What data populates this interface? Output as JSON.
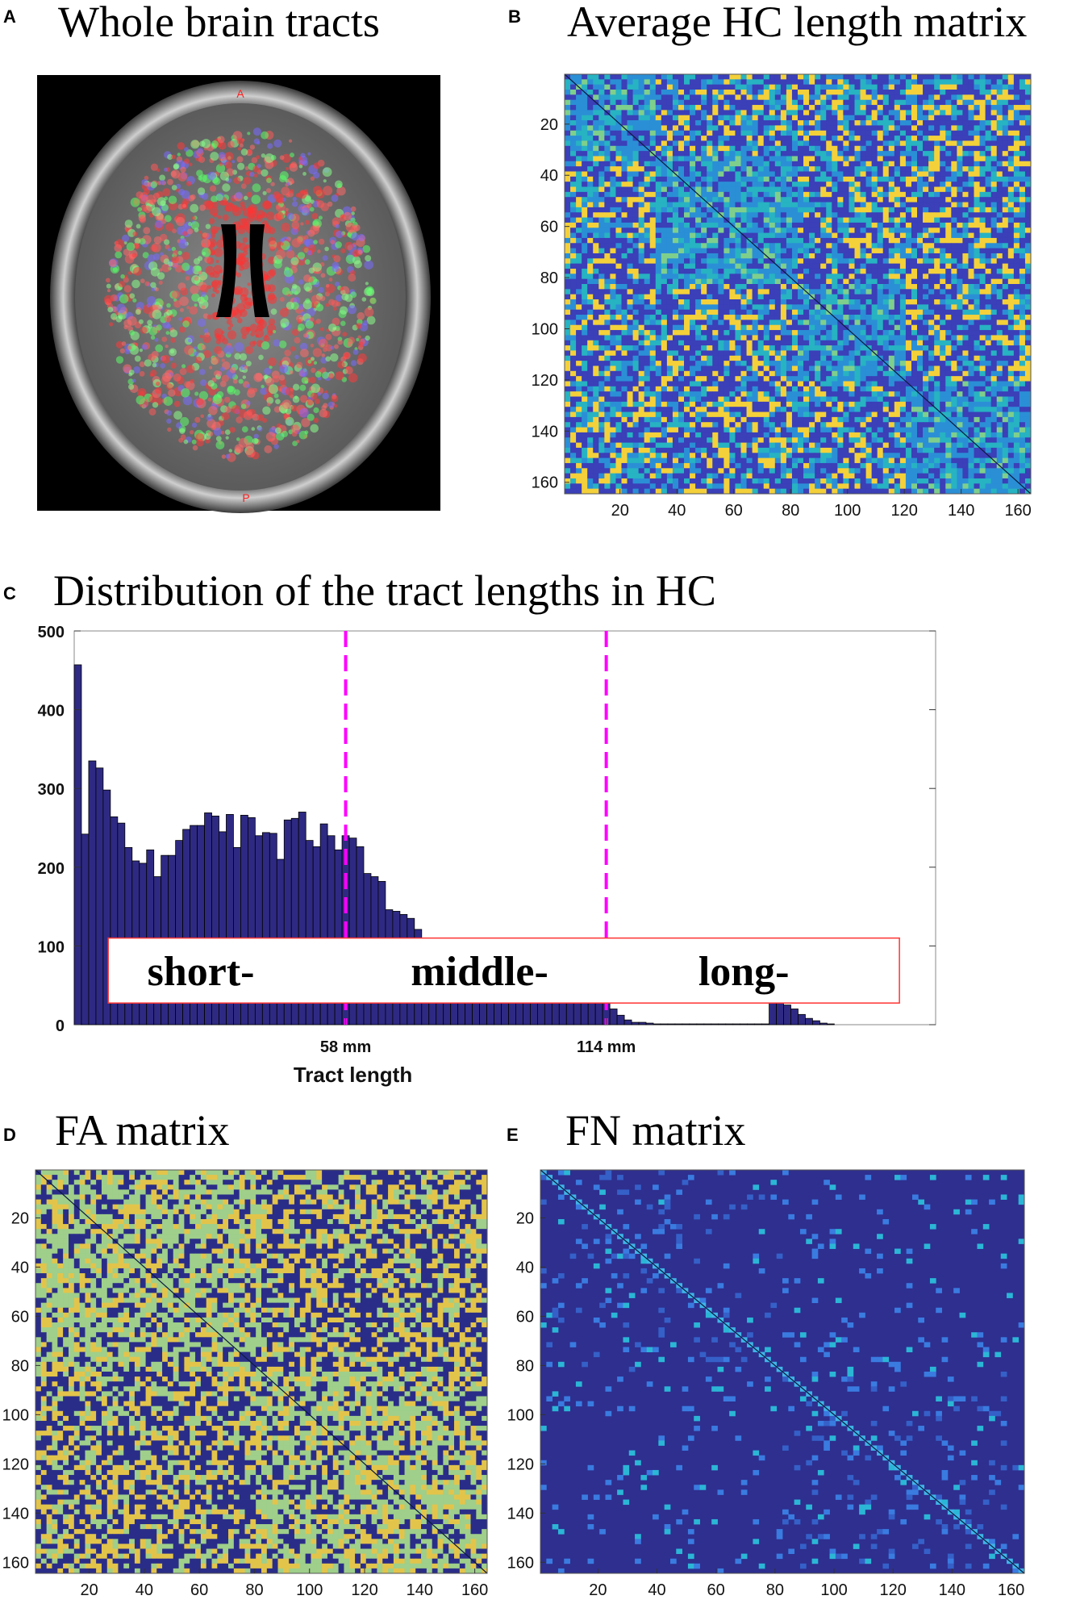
{
  "panels": {
    "A": {
      "letter": "A",
      "title": "Whole brain tracts",
      "markers": {
        "anterior": "A",
        "posterior": "P"
      }
    },
    "B": {
      "letter": "B",
      "title": "Average HC length matrix"
    },
    "C": {
      "letter": "C",
      "title": "Distribution of  the tract lengths in HC"
    },
    "D": {
      "letter": "D",
      "title": "FA matrix"
    },
    "E": {
      "letter": "E",
      "title": "FN matrix"
    }
  },
  "colors": {
    "bar": "#2e2a83",
    "bar_edge": "#000000",
    "dash": "#ff00ff",
    "label_box": "#ff3333",
    "parula_dark": "#3b3fb8",
    "parula_teal": "#27b3c2",
    "parula_yellow": "#f4d13a",
    "fa_green": "#9fcf8a",
    "fn_bg": "#2e2f8f"
  },
  "chart_data": [
    {
      "type": "heatmap",
      "id": "B",
      "title": "Average HC length matrix",
      "size": 164,
      "xlim": [
        0.5,
        164.5
      ],
      "ylim": [
        0.5,
        164.5
      ],
      "xticks": [
        20,
        40,
        60,
        80,
        100,
        120,
        140,
        160
      ],
      "yticks": [
        20,
        40,
        60,
        80,
        100,
        120,
        140,
        160
      ],
      "module_boundaries": [
        31,
        82,
        120
      ],
      "colormap": "parula"
    },
    {
      "type": "bar",
      "id": "C",
      "title": "Distribution of  the tract lengths in HC",
      "xlabel": "Tract length",
      "ylabel": "",
      "ylim": [
        0,
        500
      ],
      "yticks": [
        0,
        100,
        200,
        300,
        400,
        500
      ],
      "xtick_labels": [
        {
          "bin": 37.5,
          "label": "58 mm"
        },
        {
          "bin": 73.5,
          "label": "114 mm"
        }
      ],
      "thresholds": [
        {
          "bin": 37.5,
          "label": "58 mm"
        },
        {
          "bin": 73.5,
          "label": "114 mm"
        }
      ],
      "regions": [
        "short-",
        "middle-",
        "long-"
      ],
      "values": [
        457,
        242,
        335,
        326,
        298,
        264,
        256,
        225,
        208,
        205,
        222,
        188,
        215,
        215,
        234,
        248,
        253,
        253,
        269,
        265,
        245,
        267,
        225,
        266,
        263,
        240,
        244,
        243,
        210,
        260,
        262,
        270,
        234,
        226,
        255,
        240,
        222,
        240,
        237,
        226,
        192,
        188,
        182,
        146,
        144,
        140,
        135,
        121,
        110,
        108,
        108,
        108,
        109,
        108,
        107,
        106,
        105,
        104,
        103,
        102,
        101,
        100,
        99,
        98,
        96,
        95,
        93,
        90,
        86,
        80,
        72,
        60,
        45,
        30,
        20,
        12,
        6,
        3,
        3,
        2,
        1,
        1,
        1,
        1,
        1,
        1,
        1,
        1,
        1,
        1,
        1,
        1,
        1,
        1,
        1,
        1,
        28,
        30,
        25,
        20,
        13,
        8,
        5,
        2,
        1
      ],
      "xlim": [
        0,
        119
      ]
    },
    {
      "type": "heatmap",
      "id": "D",
      "title": "FA matrix",
      "size": 164,
      "xlim": [
        0.5,
        164.5
      ],
      "ylim": [
        0.5,
        164.5
      ],
      "xticks": [
        20,
        40,
        60,
        80,
        100,
        120,
        140,
        160
      ],
      "yticks": [
        20,
        40,
        60,
        80,
        100,
        120,
        140,
        160
      ],
      "module_boundaries": [
        82
      ],
      "colormap": "parula"
    },
    {
      "type": "heatmap",
      "id": "E",
      "title": "FN matrix",
      "size": 164,
      "xlim": [
        0.5,
        164.5
      ],
      "ylim": [
        0.5,
        164.5
      ],
      "xticks": [
        20,
        40,
        60,
        80,
        100,
        120,
        140,
        160
      ],
      "yticks": [
        20,
        40,
        60,
        80,
        100,
        120,
        140,
        160
      ],
      "module_boundaries": [
        82
      ],
      "colormap": "parula"
    }
  ]
}
